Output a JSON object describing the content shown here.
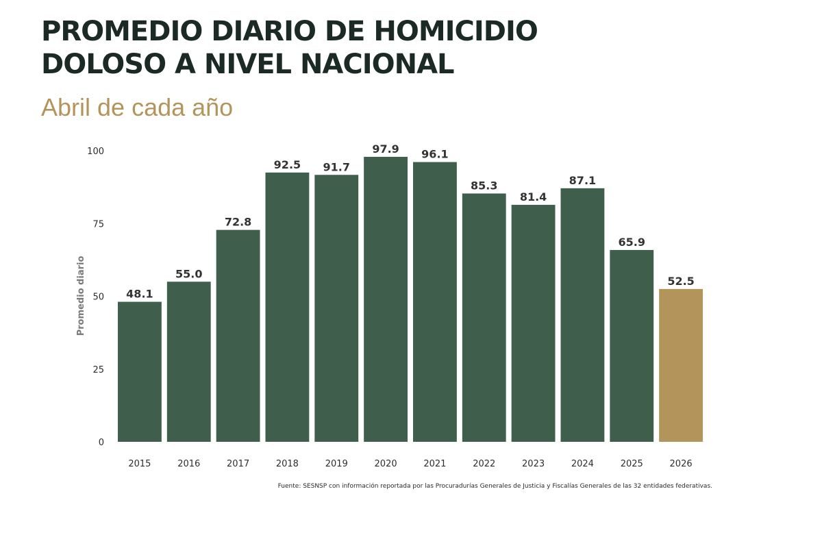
{
  "header": {
    "title_line1": "PROMEDIO DIARIO DE HOMICIDIO",
    "title_line2": "DOLOSO A NIVEL NACIONAL",
    "subtitle": "Abril de cada año"
  },
  "source_note": "Fuente: SESNSP con información reportada por las Procuradurías Generales de Justicia y Fiscalías Generales de las 32 entidades federativas.",
  "colors": {
    "bar": "#3f5e4b",
    "highlight_bar": "#b3955c",
    "title": "#1b2a24",
    "subtitle": "#b3955c"
  },
  "chart_data": {
    "type": "bar",
    "title": "PROMEDIO DIARIO DE HOMICIDIO DOLOSO A NIVEL NACIONAL",
    "subtitle": "Abril de cada año",
    "xlabel": "",
    "ylabel": "Promedio diario",
    "categories": [
      "2015",
      "2016",
      "2017",
      "2018",
      "2019",
      "2020",
      "2021",
      "2022",
      "2023",
      "2024",
      "2025",
      "2026"
    ],
    "values": [
      48.1,
      55.0,
      72.8,
      92.5,
      91.7,
      97.9,
      96.1,
      85.3,
      81.4,
      87.1,
      65.9,
      52.5
    ],
    "value_labels": [
      "48.1",
      "55.0",
      "72.8",
      "92.5",
      "91.7",
      "97.9",
      "96.1",
      "85.3",
      "81.4",
      "87.1",
      "65.9",
      "52.5"
    ],
    "highlight_category": "2026",
    "yticks": [
      0,
      25,
      50,
      75,
      100
    ],
    "ylim": [
      0,
      100
    ],
    "grid": false,
    "legend": "none"
  }
}
